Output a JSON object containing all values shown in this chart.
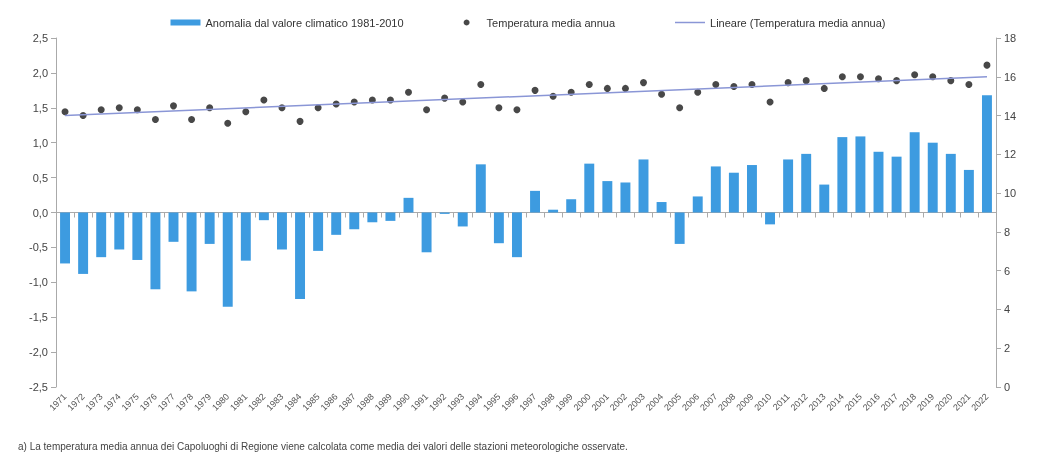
{
  "chart_data": {
    "type": "bar",
    "categories": [
      "1971",
      "1972",
      "1973",
      "1974",
      "1975",
      "1976",
      "1977",
      "1978",
      "1979",
      "1980",
      "1981",
      "1982",
      "1983",
      "1984",
      "1985",
      "1986",
      "1987",
      "1988",
      "1989",
      "1990",
      "1991",
      "1992",
      "1993",
      "1994",
      "1995",
      "1996",
      "1997",
      "1998",
      "1999",
      "2000",
      "2001",
      "2002",
      "2003",
      "2004",
      "2005",
      "2006",
      "2007",
      "2008",
      "2009",
      "2010",
      "2011",
      "2012",
      "2013",
      "2014",
      "2015",
      "2016",
      "2017",
      "2018",
      "2019",
      "2020",
      "2021",
      "2022"
    ],
    "series": [
      {
        "name": "Anomalia dal valore climatico 1981-2010",
        "color": "#3d9be0",
        "values": [
          -0.73,
          -0.88,
          -0.64,
          -0.53,
          -0.68,
          -1.1,
          -0.42,
          -1.13,
          -0.45,
          -1.35,
          -0.69,
          -0.11,
          -0.53,
          -1.24,
          -0.55,
          -0.32,
          -0.24,
          -0.14,
          -0.12,
          0.21,
          -0.57,
          -0.02,
          -0.2,
          0.69,
          -0.44,
          -0.64,
          0.31,
          0.04,
          0.19,
          0.7,
          0.45,
          0.43,
          0.76,
          0.15,
          -0.45,
          0.23,
          0.66,
          0.57,
          0.68,
          -0.17,
          0.76,
          0.84,
          0.4,
          1.08,
          1.09,
          0.87,
          0.8,
          1.15,
          1.0,
          0.84,
          0.61,
          1.68
        ]
      },
      {
        "name": "Temperatura media annua",
        "type": "scatter",
        "axis": "y2",
        "color": "#1a1a1a",
        "marker": "circle",
        "values": [
          14.2,
          14.0,
          14.3,
          14.4,
          14.3,
          13.8,
          14.5,
          13.8,
          14.4,
          13.6,
          14.2,
          14.8,
          14.4,
          13.7,
          14.4,
          14.6,
          14.7,
          14.8,
          14.8,
          15.2,
          14.3,
          14.9,
          14.7,
          15.6,
          14.4,
          14.3,
          15.3,
          15.0,
          15.2,
          15.6,
          15.4,
          15.4,
          15.7,
          15.1,
          14.4,
          15.2,
          15.6,
          15.5,
          15.6,
          14.7,
          15.7,
          15.8,
          15.4,
          16.0,
          16.0,
          15.9,
          15.8,
          16.1,
          16.0,
          15.8,
          15.6,
          16.6
        ]
      },
      {
        "name": "Lineare (Temperatura media annua)",
        "type": "line",
        "axis": "y2",
        "color": "#8a96d6",
        "line_style": "solid",
        "marker": "none",
        "values": [
          14.0,
          null,
          null,
          null,
          null,
          null,
          null,
          null,
          null,
          null,
          null,
          null,
          null,
          null,
          null,
          null,
          null,
          null,
          null,
          null,
          null,
          null,
          null,
          null,
          null,
          null,
          null,
          null,
          null,
          null,
          null,
          null,
          null,
          null,
          null,
          null,
          null,
          null,
          null,
          null,
          null,
          null,
          null,
          null,
          null,
          null,
          null,
          null,
          null,
          null,
          null,
          16.0
        ]
      }
    ],
    "ylim": [
      -2.5,
      2.5
    ],
    "yticks": [
      {
        "value": -2.5,
        "label": "-2,5"
      },
      {
        "value": -2,
        "label": "-2,0"
      },
      {
        "value": -1.5,
        "label": "-1,5"
      },
      {
        "value": -1,
        "label": "-1,0"
      },
      {
        "value": -0.5,
        "label": "-0,5"
      },
      {
        "value": 0,
        "label": "0,0"
      },
      {
        "value": 0.5,
        "label": "0,5"
      },
      {
        "value": 1,
        "label": "1,0"
      },
      {
        "value": 1.5,
        "label": "1,5"
      },
      {
        "value": 2,
        "label": "2,0"
      },
      {
        "value": 2.5,
        "label": "2,5"
      }
    ],
    "y2lim": [
      0,
      18
    ],
    "y2ticks": [
      0,
      2,
      4,
      6,
      8,
      10,
      12,
      14,
      16,
      18
    ],
    "legend": "top",
    "annotations": [
      "a) La temperatura media annua dei Capoluoghi di Regione viene calcolata come media dei valori delle stazioni meteorologiche osservate."
    ]
  }
}
